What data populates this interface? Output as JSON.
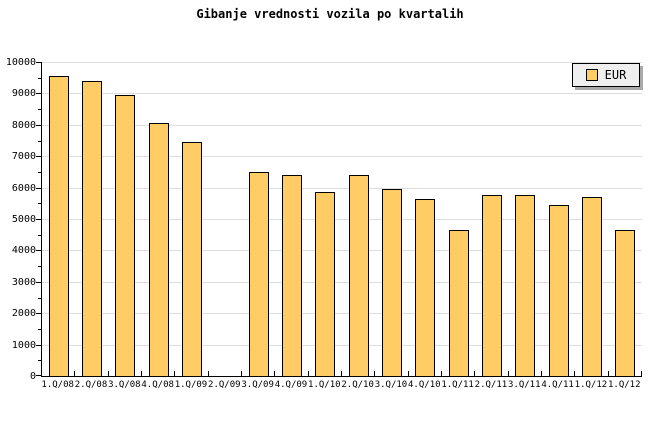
{
  "title": "Gibanje vrednosti vozila po kvartalih",
  "legend": {
    "label": "EUR",
    "position": "top-right",
    "swatch_color": "#ffcc66"
  },
  "colors": {
    "background": "#ffffff",
    "bar_fill": "#ffcc66",
    "bar_border": "#000000",
    "gridline": "#dedede",
    "axis": "#000000",
    "legend_bg": "#efefef",
    "legend_shadow": "#a9a9a9"
  },
  "chart_data": {
    "type": "bar",
    "title": "Gibanje vrednosti vozila po kvartalih",
    "series_name": "EUR",
    "categories": [
      "1.Q/08",
      "2.Q/08",
      "3.Q/08",
      "4.Q/08",
      "1.Q/09",
      "2.Q/09",
      "3.Q/09",
      "4.Q/09",
      "1.Q/10",
      "2.Q/10",
      "3.Q/10",
      "4.Q/10",
      "1.Q/11",
      "2.Q/11",
      "3.Q/11",
      "4.Q/11",
      "1.Q/12",
      "1.Q/12"
    ],
    "values": [
      9550,
      9400,
      8950,
      8050,
      7450,
      0,
      6500,
      6400,
      5850,
      6400,
      5950,
      5650,
      4650,
      5750,
      5750,
      5450,
      5700,
      4650
    ],
    "xlabel": "",
    "ylabel": "",
    "ylim": [
      0,
      10000
    ],
    "ytick_step": 1000,
    "ytick_minor_step": 500,
    "ytick_labels": [
      "0",
      "1000",
      "2000",
      "3000",
      "4000",
      "5000",
      "6000",
      "7000",
      "8000",
      "9000",
      "10000"
    ],
    "grid": true,
    "legend_position": "top-right"
  }
}
